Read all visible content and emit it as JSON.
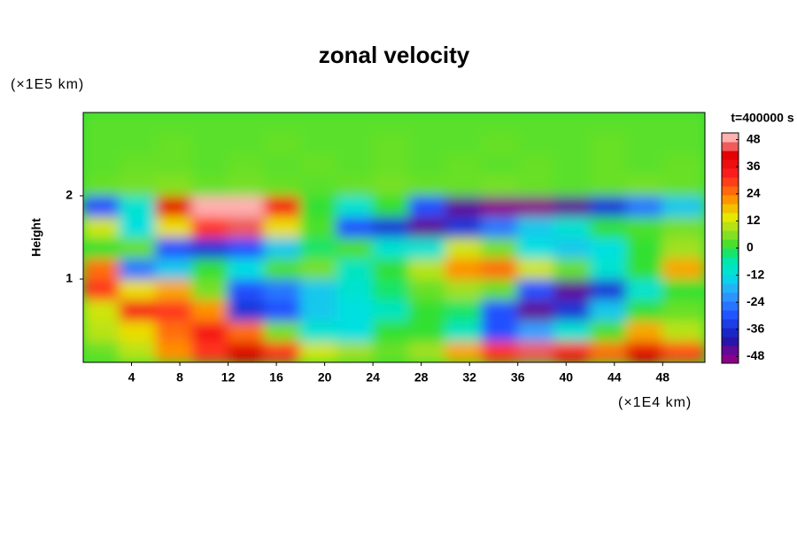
{
  "chart_data": {
    "type": "heatmap",
    "title": "zonal velocity",
    "y_unit": "(×1E5 km)",
    "x_unit": "(×1E4 km)",
    "ylabel": "Height",
    "colorbar_title": "t=400000 s",
    "xlim": [
      0,
      51.5
    ],
    "ylim": [
      0,
      3
    ],
    "xticks": [
      4,
      8,
      12,
      16,
      20,
      24,
      28,
      32,
      36,
      40,
      44,
      48
    ],
    "yticks": [
      1,
      2
    ],
    "x": [
      1.5,
      4.5,
      7.5,
      10.5,
      13.5,
      16.5,
      19.5,
      22.5,
      25.5,
      28.5,
      31.5,
      34.5,
      37.5,
      40.5,
      43.5,
      46.5,
      49.5
    ],
    "y": [
      0.125,
      0.375,
      0.625,
      0.875,
      1.125,
      1.375,
      1.625,
      1.875,
      2.125,
      2.375,
      2.625,
      2.875
    ],
    "z": [
      [
        4,
        10,
        22,
        30,
        42,
        30,
        12,
        8,
        4,
        8,
        20,
        30,
        45,
        35,
        25,
        40,
        28
      ],
      [
        10,
        15,
        25,
        35,
        25,
        5,
        -10,
        -12,
        0,
        0,
        -8,
        -30,
        -20,
        -10,
        2,
        20,
        10
      ],
      [
        12,
        35,
        30,
        22,
        -35,
        -30,
        -15,
        -12,
        -8,
        0,
        -2,
        -30,
        -45,
        -35,
        -15,
        0,
        4
      ],
      [
        30,
        15,
        20,
        5,
        -30,
        -25,
        -15,
        -10,
        -2,
        4,
        8,
        4,
        -30,
        -45,
        -35,
        -10,
        0
      ],
      [
        25,
        -25,
        -15,
        0,
        -12,
        2,
        5,
        -8,
        0,
        10,
        22,
        25,
        12,
        4,
        -10,
        0,
        20
      ],
      [
        0,
        4,
        -30,
        -35,
        -30,
        -15,
        -2,
        2,
        -10,
        -10,
        12,
        5,
        -12,
        -15,
        -12,
        0,
        8
      ],
      [
        12,
        -12,
        15,
        30,
        45,
        15,
        2,
        -30,
        -35,
        -45,
        -35,
        -25,
        -15,
        -10,
        0,
        2,
        5
      ],
      [
        -30,
        -10,
        40,
        48,
        48,
        35,
        0,
        -10,
        0,
        -30,
        -45,
        -48,
        -48,
        -45,
        -35,
        -25,
        -15
      ],
      [
        4,
        5,
        6,
        4,
        5,
        4,
        3,
        4,
        5,
        4,
        4,
        5,
        4,
        3,
        4,
        5,
        4
      ],
      [
        3,
        4,
        4,
        3,
        4,
        3,
        4,
        3,
        4,
        3,
        4,
        3,
        4,
        3,
        4,
        3,
        4
      ],
      [
        3,
        3,
        4,
        3,
        3,
        4,
        3,
        3,
        4,
        3,
        3,
        4,
        3,
        3,
        4,
        3,
        3
      ],
      [
        3,
        3,
        3,
        3,
        3,
        3,
        3,
        3,
        3,
        3,
        3,
        3,
        3,
        3,
        3,
        3,
        3
      ]
    ],
    "clim": [
      -51,
      51
    ],
    "cticks": [
      -48,
      -36,
      -24,
      -12,
      0,
      12,
      24,
      36,
      48
    ],
    "colormap": [
      [
        -48,
        "#8a008a"
      ],
      [
        -40,
        "#1818b0"
      ],
      [
        -30,
        "#2050ff"
      ],
      [
        -20,
        "#30a0ff"
      ],
      [
        -12,
        "#00e0e0"
      ],
      [
        -4,
        "#00e8a0"
      ],
      [
        0,
        "#30e030"
      ],
      [
        8,
        "#a0e020"
      ],
      [
        14,
        "#e8e800"
      ],
      [
        22,
        "#ff9000"
      ],
      [
        32,
        "#ff2020"
      ],
      [
        42,
        "#e00000"
      ],
      [
        48,
        "#ffb0b0"
      ]
    ]
  }
}
